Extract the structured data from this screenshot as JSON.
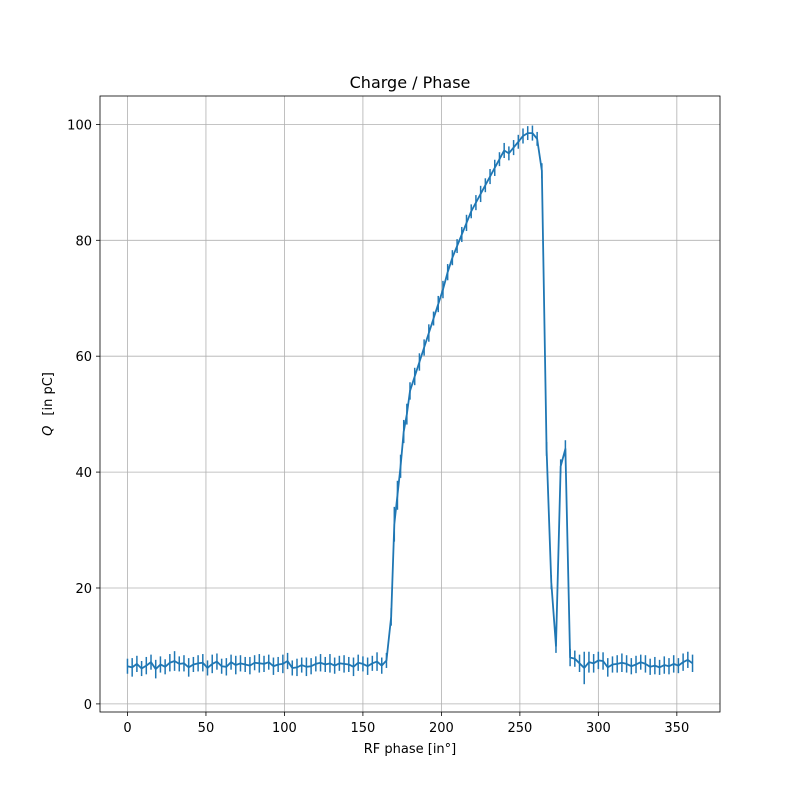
{
  "chart_data": {
    "type": "line",
    "title": "Charge / Phase",
    "xlabel": "RF phase [in°]",
    "ylabel_var": "Q",
    "ylabel_unit": "[in   pC]",
    "xlim": [
      -17.5,
      377.5
    ],
    "ylim": [
      -1.4,
      104.9
    ],
    "xticks": [
      0,
      50,
      100,
      150,
      200,
      250,
      300,
      350
    ],
    "yticks": [
      0,
      20,
      40,
      60,
      80,
      100
    ],
    "grid": true,
    "legend": "none",
    "colors": {
      "series": "#1f77b4",
      "grid": "#b0b0b0",
      "axes": "#000000"
    },
    "series": [
      {
        "x": [
          0,
          3,
          6,
          9,
          12,
          15,
          18,
          21,
          24,
          27,
          30,
          33,
          36,
          39,
          42,
          45,
          48,
          51,
          54,
          57,
          60,
          63,
          66,
          69,
          72,
          75,
          78,
          81,
          84,
          87,
          90,
          93,
          96,
          99,
          102,
          105,
          108,
          111,
          114,
          117,
          120,
          123,
          126,
          129,
          132,
          135,
          138,
          141,
          144,
          147,
          150,
          153,
          156,
          159,
          162,
          165,
          168,
          170,
          172,
          174,
          176,
          178,
          180,
          183,
          186,
          189,
          192,
          195,
          198,
          201,
          204,
          207,
          210,
          213,
          216,
          219,
          222,
          225,
          228,
          231,
          234,
          237,
          240,
          243,
          246,
          249,
          252,
          255,
          258,
          261,
          264,
          267,
          270,
          273,
          276,
          279,
          282,
          285,
          288,
          291,
          294,
          297,
          300,
          303,
          306,
          309,
          312,
          315,
          318,
          321,
          324,
          327,
          330,
          333,
          336,
          339,
          342,
          345,
          348,
          351,
          354,
          357,
          360
        ],
        "y": [
          6.5,
          6.3,
          6.9,
          6.1,
          6.6,
          7.2,
          6.0,
          6.8,
          6.4,
          7.1,
          7.4,
          6.9,
          7.0,
          6.3,
          6.8,
          7.0,
          7.1,
          6.2,
          6.9,
          7.3,
          6.5,
          6.4,
          7.2,
          6.7,
          7.0,
          6.8,
          6.6,
          7.1,
          7.0,
          6.9,
          7.2,
          6.5,
          6.8,
          6.9,
          7.4,
          6.2,
          6.3,
          6.7,
          6.4,
          6.5,
          6.9,
          7.1,
          6.8,
          7.0,
          6.6,
          7.0,
          6.9,
          6.8,
          6.4,
          7.1,
          6.9,
          6.5,
          7.0,
          7.3,
          6.6,
          7.5,
          15.0,
          31.0,
          36.0,
          41.0,
          47.0,
          50.0,
          54.0,
          56.5,
          59.0,
          61.5,
          64.0,
          66.5,
          69.0,
          71.5,
          74.5,
          77.0,
          79.0,
          81.0,
          83.0,
          85.0,
          86.5,
          88.0,
          89.5,
          91.0,
          92.5,
          94.0,
          95.5,
          95.0,
          96.0,
          97.0,
          98.0,
          98.5,
          98.5,
          97.5,
          92.0,
          44.0,
          21.0,
          10.0,
          41.0,
          44.0,
          8.0,
          7.8,
          7.0,
          6.2,
          7.2,
          7.0,
          7.5,
          7.4,
          6.3,
          6.8,
          6.9,
          7.1,
          6.9,
          6.5,
          6.8,
          7.2,
          6.9,
          6.4,
          6.6,
          6.3,
          6.7,
          6.5,
          6.9,
          6.6,
          7.2,
          7.6,
          7.0
        ],
        "yerr": [
          1.3,
          1.6,
          1.4,
          1.3,
          1.5,
          1.3,
          1.6,
          1.4,
          1.3,
          1.5,
          1.7,
          1.3,
          1.4,
          1.6,
          1.3,
          1.4,
          1.5,
          1.3,
          1.6,
          1.4,
          1.3,
          1.5,
          1.3,
          1.6,
          1.4,
          1.3,
          1.5,
          1.3,
          1.6,
          1.4,
          1.3,
          1.5,
          1.3,
          1.6,
          1.4,
          1.3,
          1.5,
          1.3,
          1.6,
          1.4,
          1.3,
          1.5,
          1.3,
          1.6,
          1.4,
          1.3,
          1.5,
          1.3,
          1.6,
          1.4,
          1.3,
          1.5,
          1.3,
          1.6,
          1.4,
          1.3,
          1.5,
          3.0,
          2.5,
          2.0,
          2.0,
          1.8,
          1.5,
          1.5,
          1.5,
          1.4,
          1.5,
          1.2,
          1.4,
          1.5,
          1.4,
          1.3,
          1.2,
          1.3,
          1.4,
          1.2,
          1.3,
          1.4,
          1.2,
          1.3,
          1.4,
          1.2,
          1.3,
          1.2,
          1.3,
          1.2,
          1.3,
          1.2,
          1.3,
          1.2,
          1.3,
          1.2,
          1.2,
          1.2,
          1.2,
          1.5,
          1.5,
          1.4,
          1.5,
          2.8,
          1.8,
          1.6,
          1.5,
          1.5,
          1.6,
          1.4,
          1.5,
          1.6,
          1.5,
          1.4,
          1.5,
          1.3,
          1.5,
          1.4,
          1.5,
          1.3,
          1.5,
          1.4,
          1.5,
          1.3,
          1.5,
          1.4,
          1.5
        ]
      }
    ]
  }
}
